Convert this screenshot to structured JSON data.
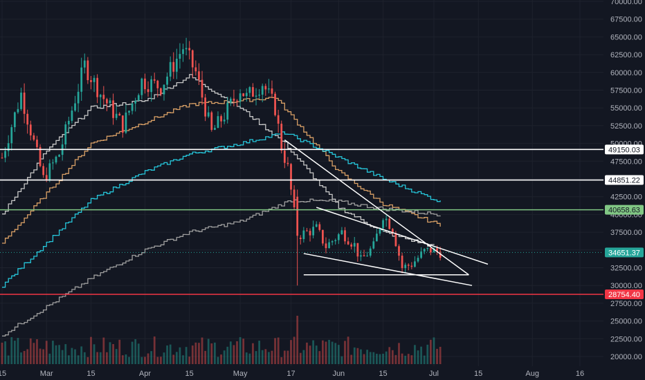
{
  "chart_data": {
    "type": "candlestick",
    "y_axis": {
      "position": "right",
      "range": [
        18750,
        70000
      ],
      "ticks": [
        20000,
        22500,
        25000,
        27500,
        30000,
        32500,
        35000,
        37500,
        40000,
        42500,
        45000,
        47500,
        50000,
        52500,
        55000,
        57500,
        60000,
        62500,
        65000,
        67500,
        70000
      ],
      "tick_labels": [
        "20000.00",
        "22500.00",
        "25000.00",
        "27500.00",
        "30000.00",
        "32500.00",
        "35000.00",
        "37500.00",
        "40000.00",
        "42500.00",
        "45000.00",
        "47500.00",
        "50000.00",
        "52500.00",
        "55000.00",
        "57500.00",
        "60000.00",
        "62500.00",
        "65000.00",
        "67500.00",
        "70000.00"
      ]
    },
    "x_axis": {
      "ticks": [
        {
          "date": "2021-02-15",
          "label": "15"
        },
        {
          "date": "2021-03-01",
          "label": "Mar"
        },
        {
          "date": "2021-03-15",
          "label": "15"
        },
        {
          "date": "2021-04-01",
          "label": "Apr"
        },
        {
          "date": "2021-04-15",
          "label": "15"
        },
        {
          "date": "2021-05-01",
          "label": "May"
        },
        {
          "date": "2021-05-17",
          "label": "17"
        },
        {
          "date": "2021-06-01",
          "label": "Jun"
        },
        {
          "date": "2021-06-15",
          "label": "15"
        },
        {
          "date": "2021-07-01",
          "label": "Jul"
        },
        {
          "date": "2021-07-15",
          "label": "15"
        },
        {
          "date": "2021-08-01",
          "label": "Aug"
        },
        {
          "date": "2021-08-16",
          "label": "16"
        }
      ]
    },
    "price_path": [
      {
        "date": "2021-02-15",
        "close": 48000
      },
      {
        "date": "2021-02-21",
        "close": 57000
      },
      {
        "date": "2021-02-28",
        "close": 45000
      },
      {
        "date": "2021-03-05",
        "close": 48500
      },
      {
        "date": "2021-03-13",
        "close": 61000
      },
      {
        "date": "2021-03-18",
        "close": 57000
      },
      {
        "date": "2021-03-25",
        "close": 52500
      },
      {
        "date": "2021-03-31",
        "close": 58800
      },
      {
        "date": "2021-04-06",
        "close": 58000
      },
      {
        "date": "2021-04-13",
        "close": 63500
      },
      {
        "date": "2021-04-17",
        "close": 60000
      },
      {
        "date": "2021-04-22",
        "close": 51500
      },
      {
        "date": "2021-04-26",
        "close": 54000
      },
      {
        "date": "2021-05-01",
        "close": 57700
      },
      {
        "date": "2021-05-03",
        "close": 56500
      },
      {
        "date": "2021-05-08",
        "close": 58500
      },
      {
        "date": "2021-05-12",
        "close": 55000
      },
      {
        "date": "2021-05-14",
        "close": 49500
      },
      {
        "date": "2021-05-16",
        "close": 46500
      },
      {
        "date": "2021-05-19",
        "close": 37000
      },
      {
        "date": "2021-05-22",
        "close": 37500
      },
      {
        "date": "2021-05-25",
        "close": 38000
      },
      {
        "date": "2021-05-28",
        "close": 35500
      },
      {
        "date": "2021-06-02",
        "close": 37500
      },
      {
        "date": "2021-06-06",
        "close": 35700
      },
      {
        "date": "2021-06-08",
        "close": 33500
      },
      {
        "date": "2021-06-12",
        "close": 35500
      },
      {
        "date": "2021-06-15",
        "close": 40000
      },
      {
        "date": "2021-06-18",
        "close": 38000
      },
      {
        "date": "2021-06-21",
        "close": 32500
      },
      {
        "date": "2021-06-24",
        "close": 33000
      },
      {
        "date": "2021-06-28",
        "close": 34800
      },
      {
        "date": "2021-06-30",
        "close": 35000
      },
      {
        "date": "2021-07-03",
        "close": 34651
      }
    ],
    "moving_averages": [
      {
        "color": "#c8c8c8",
        "points": [
          {
            "date": "2021-02-15",
            "value": 40000
          },
          {
            "date": "2021-03-01",
            "value": 49000
          },
          {
            "date": "2021-03-15",
            "value": 55000
          },
          {
            "date": "2021-04-01",
            "value": 56000
          },
          {
            "date": "2021-04-15",
            "value": 59500
          },
          {
            "date": "2021-05-01",
            "value": 55000
          },
          {
            "date": "2021-05-15",
            "value": 50000
          },
          {
            "date": "2021-06-01",
            "value": 41000
          },
          {
            "date": "2021-06-15",
            "value": 37500
          },
          {
            "date": "2021-07-01",
            "value": 35500
          }
        ]
      },
      {
        "color": "#d9a066",
        "points": [
          {
            "date": "2021-02-15",
            "value": 36000
          },
          {
            "date": "2021-03-01",
            "value": 43000
          },
          {
            "date": "2021-03-15",
            "value": 50000
          },
          {
            "date": "2021-04-01",
            "value": 53000
          },
          {
            "date": "2021-04-15",
            "value": 55500
          },
          {
            "date": "2021-05-01",
            "value": 56000
          },
          {
            "date": "2021-05-12",
            "value": 56500
          },
          {
            "date": "2021-06-01",
            "value": 46000
          },
          {
            "date": "2021-06-15",
            "value": 41500
          },
          {
            "date": "2021-07-03",
            "value": 38500
          }
        ]
      },
      {
        "color": "#26c6da",
        "points": [
          {
            "date": "2021-02-15",
            "value": 30000
          },
          {
            "date": "2021-03-01",
            "value": 36000
          },
          {
            "date": "2021-03-15",
            "value": 42000
          },
          {
            "date": "2021-04-01",
            "value": 46000
          },
          {
            "date": "2021-04-15",
            "value": 48500
          },
          {
            "date": "2021-05-01",
            "value": 50000
          },
          {
            "date": "2021-05-15",
            "value": 51500
          },
          {
            "date": "2021-06-01",
            "value": 48000
          },
          {
            "date": "2021-06-15",
            "value": 45000
          },
          {
            "date": "2021-07-03",
            "value": 41800
          }
        ]
      },
      {
        "color": "#9e9e9e",
        "points": [
          {
            "date": "2021-02-15",
            "value": 23000
          },
          {
            "date": "2021-03-01",
            "value": 27000
          },
          {
            "date": "2021-03-15",
            "value": 31000
          },
          {
            "date": "2021-04-01",
            "value": 35000
          },
          {
            "date": "2021-04-15",
            "value": 37500
          },
          {
            "date": "2021-05-01",
            "value": 39000
          },
          {
            "date": "2021-05-17",
            "value": 42000
          },
          {
            "date": "2021-06-01",
            "value": 41800
          },
          {
            "date": "2021-06-15",
            "value": 40800
          },
          {
            "date": "2021-07-03",
            "value": 40000
          }
        ]
      }
    ],
    "horizontal_levels": [
      {
        "value": 49150.03,
        "label": "49150.03",
        "color": "#ffffff",
        "text_color": "#131722"
      },
      {
        "value": 44851.22,
        "label": "44851.22",
        "color": "#ffffff",
        "text_color": "#131722"
      },
      {
        "value": 40658.63,
        "label": "40658.63",
        "color": "#81c784",
        "text_color": "#131722"
      },
      {
        "value": 28754.4,
        "label": "28754.40",
        "color": "#f23645",
        "text_color": "#ffffff"
      }
    ],
    "current_price": {
      "value": 34651.37,
      "label": "34651.37",
      "color": "#26a69a"
    },
    "trendlines": [
      {
        "from": {
          "date": "2021-05-15",
          "value": 50500
        },
        "to": {
          "date": "2021-07-12",
          "value": 31500
        }
      },
      {
        "from": {
          "date": "2021-05-25",
          "value": 41000
        },
        "to": {
          "date": "2021-07-18",
          "value": 33000
        }
      },
      {
        "from": {
          "date": "2021-05-21",
          "value": 34500
        },
        "to": {
          "date": "2021-07-13",
          "value": 30000
        }
      },
      {
        "from": {
          "date": "2021-05-21",
          "value": 31500
        },
        "to": {
          "date": "2021-07-12",
          "value": 31500
        }
      }
    ],
    "colors": {
      "up": "#26a69a",
      "down": "#ef5350",
      "background": "#131722",
      "grid": "#1e222d"
    }
  }
}
